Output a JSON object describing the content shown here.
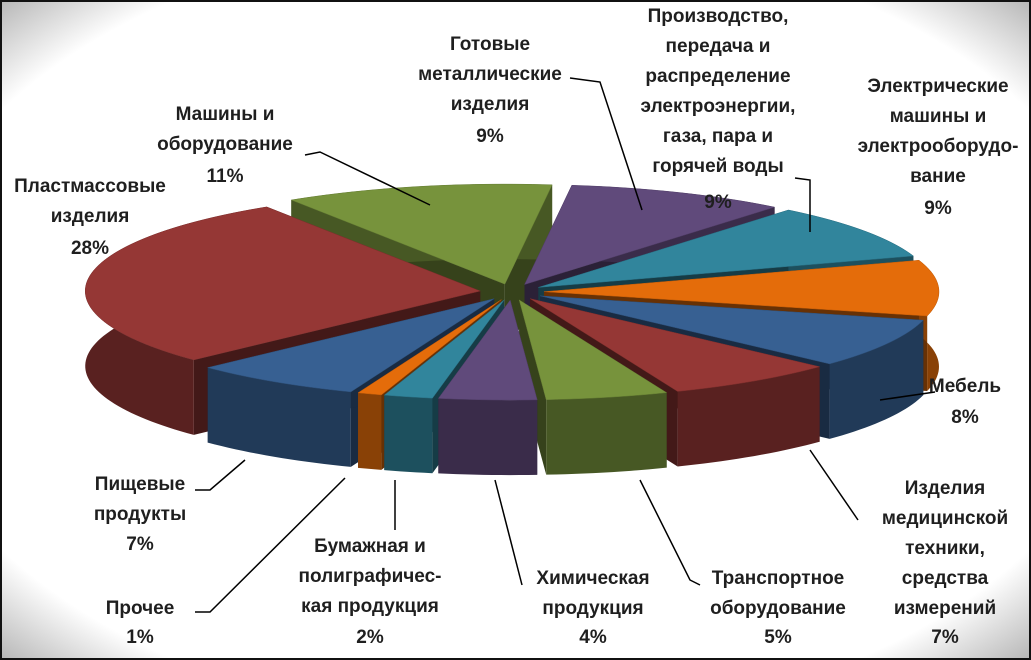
{
  "chart_data": {
    "type": "pie",
    "categories": [
      "Готовые\nметаллические\nизделия",
      "Производство,\nпередача и\nраспределение\nэлектроэнергии,\nгаза, пара и\nгорячей воды",
      "Электрические\nмашины и\nэлектрооборудо-\nвание",
      "Мебель",
      "Изделия\nмедицинской\nтехники,\nсредства\nизмерений",
      "Транспортное\nоборудование",
      "Химическая\nпродукция",
      "Бумажная и\nполиграфичес-\nкая продукция",
      "Прочее",
      "Пищевые\nпродукты",
      "Пластмассовые\nизделия",
      "Машины и\nоборудование"
    ],
    "values": [
      9,
      9,
      9,
      8,
      7,
      5,
      4,
      2,
      1,
      7,
      28,
      11
    ],
    "value_labels": [
      "9%",
      "9%",
      "9%",
      "8%",
      "7%",
      "5%",
      "4%",
      "2%",
      "1%",
      "7%",
      "28%",
      "11%"
    ],
    "colors": [
      "#604a7b",
      "#31859c",
      "#e46c0a",
      "#376092",
      "#953735",
      "#77933c",
      "#604a7b",
      "#31859c",
      "#e46c0a",
      "#376092",
      "#953735",
      "#77933c"
    ]
  }
}
